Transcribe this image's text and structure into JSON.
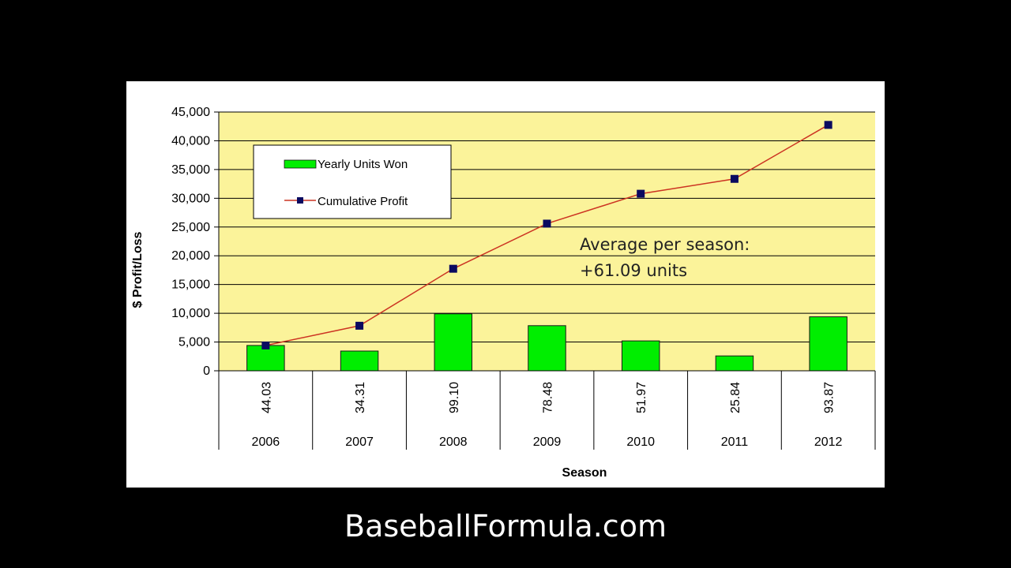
{
  "caption": "BaseballFormula.com",
  "chart_data": {
    "type": "bar",
    "categories": [
      "2006",
      "2007",
      "2008",
      "2009",
      "2010",
      "2011",
      "2012"
    ],
    "data_labels": [
      "44.03",
      "34.31",
      "99.10",
      "78.48",
      "51.97",
      "25.84",
      "93.87"
    ],
    "series": [
      {
        "name": "Yearly Units Won",
        "type": "bar",
        "color": "#00ee00",
        "values": [
          4403,
          3431,
          9910,
          7848,
          5197,
          2584,
          9387
        ]
      },
      {
        "name": "Cumulative Profit",
        "type": "line",
        "color": "#cc3322",
        "marker_color": "#0a0a60",
        "values": [
          4403,
          7834,
          17744,
          25592,
          30789,
          33373,
          42760
        ]
      }
    ],
    "xlabel": "Season",
    "ylabel": "$ Profit/Loss",
    "ylim": [
      0,
      45000
    ],
    "yticks": [
      0,
      5000,
      10000,
      15000,
      20000,
      25000,
      30000,
      35000,
      40000,
      45000
    ],
    "ytick_labels": [
      "0",
      "5,000",
      "10,000",
      "15,000",
      "20,000",
      "25,000",
      "30,000",
      "35,000",
      "40,000",
      "45,000"
    ],
    "grid": true,
    "plot_background": "#fbf39a",
    "legend_position": "top-left",
    "annotation": [
      "Average per season:",
      "+61.09 units"
    ]
  }
}
